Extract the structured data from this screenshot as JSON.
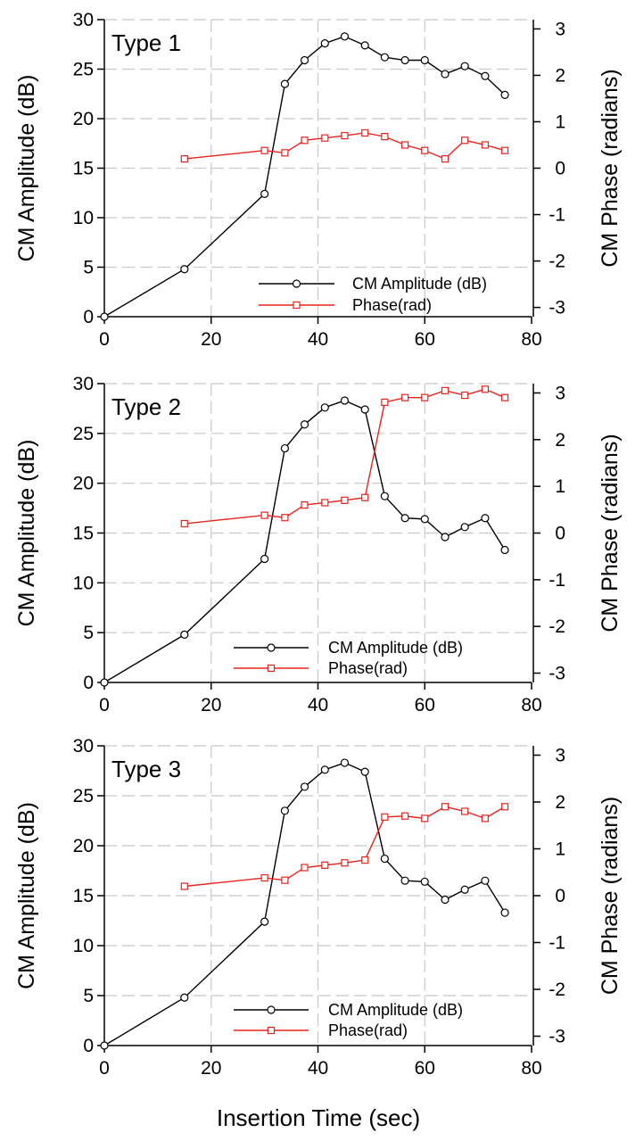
{
  "chart_data": {
    "type": "line",
    "shared_x_label": "Insertion Time (sec)",
    "panels": [
      {
        "panel_label": "Type 1",
        "x_ticks": [
          0,
          20,
          40,
          60,
          80
        ],
        "xlim": [
          0,
          80
        ],
        "ylabel_left": "CM Amplitude (dB)",
        "ylim_left": [
          0,
          30
        ],
        "y_ticks_left": [
          0,
          5,
          10,
          15,
          20,
          25,
          30
        ],
        "ylabel_right": "CM Phase (radians)",
        "ylim_right": [
          -3.2,
          3.2
        ],
        "y_ticks_right": [
          -3,
          -2,
          -1,
          0,
          1,
          2,
          3
        ],
        "grid": true,
        "legend_position": "bottom-right",
        "series": [
          {
            "name": "CM Amplitude (dB)",
            "axis": "left",
            "color": "#000000",
            "marker": "circle",
            "x": [
              0,
              15,
              30,
              33.8,
              37.5,
              41.3,
              45,
              48.8,
              52.5,
              56.3,
              60,
              63.8,
              67.5,
              71.3,
              75
            ],
            "y": [
              0,
              4.8,
              12.4,
              23.5,
              25.9,
              27.6,
              28.3,
              27.4,
              26.2,
              25.9,
              25.9,
              24.5,
              25.3,
              24.3,
              22.4
            ]
          },
          {
            "name": "Phase(rad)",
            "axis": "right",
            "color": "#e8241c",
            "marker": "square",
            "x": [
              15,
              30,
              33.8,
              37.5,
              41.3,
              45,
              48.8,
              52.5,
              56.3,
              60,
              63.8,
              67.5,
              71.3,
              75
            ],
            "y": [
              0.2,
              0.38,
              0.33,
              0.6,
              0.65,
              0.7,
              0.76,
              0.68,
              0.5,
              0.38,
              0.2,
              0.6,
              0.5,
              0.38
            ]
          }
        ]
      },
      {
        "panel_label": "Type 2",
        "x_ticks": [
          0,
          20,
          40,
          60,
          80
        ],
        "xlim": [
          0,
          80
        ],
        "ylabel_left": "CM Amplitude (dB)",
        "ylim_left": [
          0,
          30
        ],
        "y_ticks_left": [
          0,
          5,
          10,
          15,
          20,
          25,
          30
        ],
        "ylabel_right": "CM Phase (radians)",
        "ylim_right": [
          -3.2,
          3.2
        ],
        "y_ticks_right": [
          -3,
          -2,
          -1,
          0,
          1,
          2,
          3
        ],
        "grid": true,
        "legend_position": "bottom-center",
        "series": [
          {
            "name": "CM Amplitude (dB)",
            "axis": "left",
            "color": "#000000",
            "marker": "circle",
            "x": [
              0,
              15,
              30,
              33.8,
              37.5,
              41.3,
              45,
              48.8,
              52.5,
              56.3,
              60,
              63.8,
              67.5,
              71.3,
              75
            ],
            "y": [
              0,
              4.8,
              12.4,
              23.5,
              25.9,
              27.6,
              28.3,
              27.4,
              18.7,
              16.5,
              16.4,
              14.6,
              15.6,
              16.5,
              13.3
            ]
          },
          {
            "name": "Phase(rad)",
            "axis": "right",
            "color": "#e8241c",
            "marker": "square",
            "x": [
              15,
              30,
              33.8,
              37.5,
              41.3,
              45,
              48.8,
              52.5,
              56.3,
              60,
              63.8,
              67.5,
              71.3,
              75
            ],
            "y": [
              0.2,
              0.38,
              0.33,
              0.6,
              0.65,
              0.7,
              0.76,
              2.8,
              2.9,
              2.9,
              3.05,
              2.95,
              3.08,
              2.9
            ]
          }
        ]
      },
      {
        "panel_label": "Type 3",
        "x_ticks": [
          0,
          20,
          40,
          60,
          80
        ],
        "xlim": [
          0,
          80
        ],
        "ylabel_left": "CM Amplitude (dB)",
        "ylim_left": [
          0,
          30
        ],
        "y_ticks_left": [
          0,
          5,
          10,
          15,
          20,
          25,
          30
        ],
        "ylabel_right": "CM Phase (radians)",
        "ylim_right": [
          -3.2,
          3.2
        ],
        "y_ticks_right": [
          -3,
          -2,
          -1,
          0,
          1,
          2,
          3
        ],
        "grid": true,
        "legend_position": "bottom-center",
        "series": [
          {
            "name": "CM Amplitude (dB)",
            "axis": "left",
            "color": "#000000",
            "marker": "circle",
            "x": [
              0,
              15,
              30,
              33.8,
              37.5,
              41.3,
              45,
              48.8,
              52.5,
              56.3,
              60,
              63.8,
              67.5,
              71.3,
              75
            ],
            "y": [
              0,
              4.8,
              12.4,
              23.5,
              25.9,
              27.6,
              28.3,
              27.4,
              18.7,
              16.5,
              16.4,
              14.6,
              15.6,
              16.5,
              13.3
            ]
          },
          {
            "name": "Phase(rad)",
            "axis": "right",
            "color": "#e8241c",
            "marker": "square",
            "x": [
              15,
              30,
              33.8,
              37.5,
              41.3,
              45,
              48.8,
              52.5,
              56.3,
              60,
              63.8,
              67.5,
              71.3,
              75
            ],
            "y": [
              0.2,
              0.38,
              0.33,
              0.6,
              0.65,
              0.7,
              0.76,
              1.68,
              1.7,
              1.65,
              1.9,
              1.8,
              1.65,
              1.9
            ]
          }
        ]
      }
    ]
  }
}
